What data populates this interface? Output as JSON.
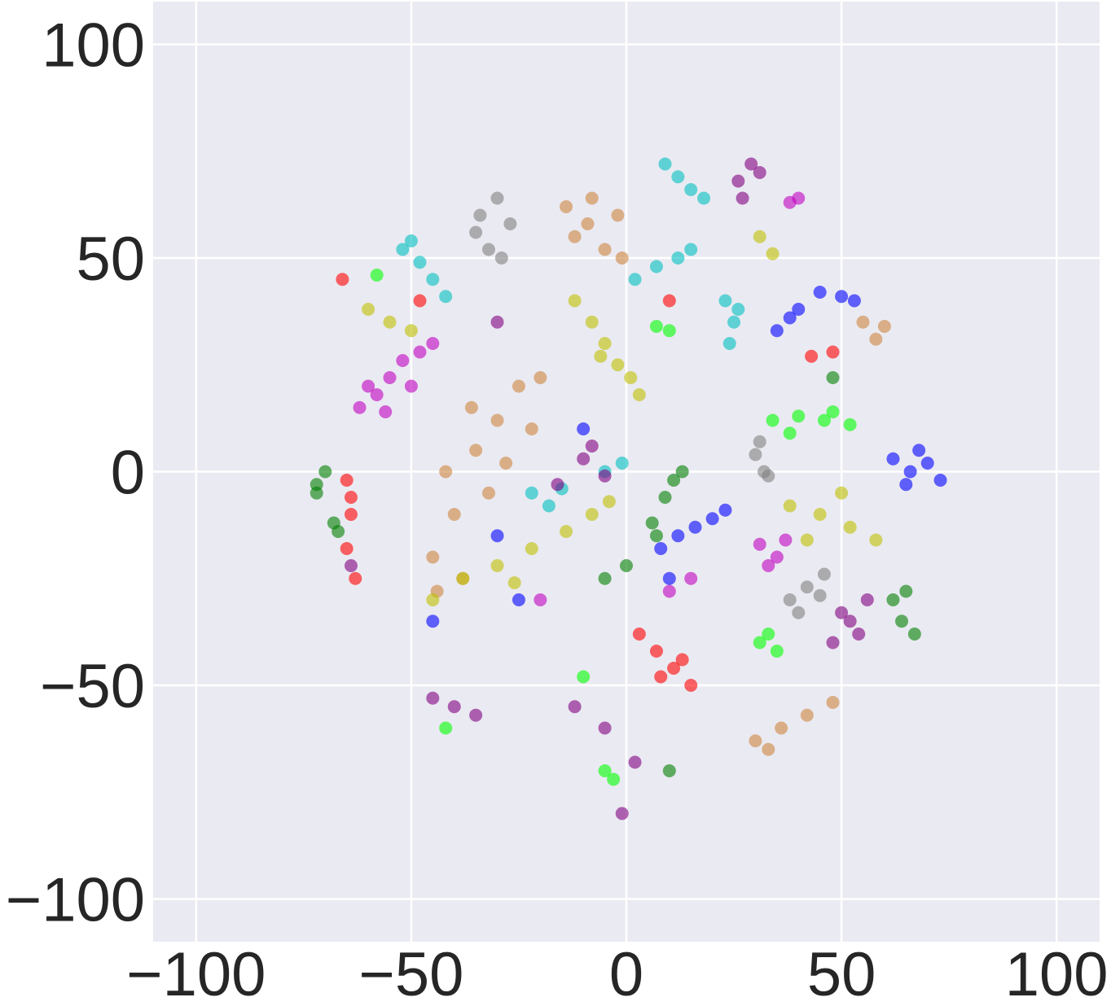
{
  "chart_data": {
    "type": "scatter",
    "xlim": [
      -110,
      110
    ],
    "ylim": [
      -110,
      110
    ],
    "xticks": [
      {
        "value": -100,
        "label": "−100"
      },
      {
        "value": -50,
        "label": "−50"
      },
      0,
      50,
      100
    ],
    "yticks": [
      {
        "value": -100,
        "label": "−100"
      },
      {
        "value": -50,
        "label": "−50"
      },
      0,
      50,
      100
    ],
    "grid": true,
    "series": [
      {
        "color": "#cd853f",
        "x": [
          -14,
          -8,
          -2,
          -12,
          -5,
          -9,
          -1,
          -45,
          -40,
          -42,
          -35,
          -30,
          -25,
          -20,
          -38,
          -32,
          -28,
          -22,
          -44,
          -36,
          30,
          36,
          42,
          48,
          33,
          55,
          58,
          60
        ],
        "y": [
          62,
          64,
          60,
          55,
          52,
          58,
          50,
          -20,
          -10,
          0,
          5,
          12,
          20,
          22,
          -25,
          -5,
          2,
          10,
          -28,
          15,
          -63,
          -60,
          -57,
          -54,
          -65,
          35,
          31,
          34
        ]
      },
      {
        "color": "#808080",
        "x": [
          -34,
          -30,
          -27,
          -32,
          -29,
          -35,
          30,
          32,
          31,
          33,
          38,
          42,
          46,
          40,
          45
        ],
        "y": [
          60,
          64,
          58,
          52,
          50,
          56,
          4,
          0,
          7,
          -1,
          -30,
          -27,
          -24,
          -33,
          -29
        ]
      },
      {
        "color": "#00bfbf",
        "x": [
          9,
          12,
          15,
          18,
          -52,
          -48,
          -45,
          -42,
          -50,
          23,
          25,
          24,
          26,
          2,
          7,
          12,
          15,
          -22,
          -18,
          -15,
          -5,
          -1
        ],
        "y": [
          72,
          69,
          66,
          64,
          52,
          49,
          45,
          41,
          54,
          40,
          35,
          30,
          38,
          45,
          48,
          50,
          52,
          -5,
          -8,
          -4,
          0,
          2
        ]
      },
      {
        "color": "#bf00bf",
        "x": [
          -62,
          -58,
          -55,
          -52,
          -48,
          -60,
          -56,
          -50,
          -45,
          31,
          35,
          33,
          37,
          38,
          40,
          -20,
          10,
          15
        ],
        "y": [
          15,
          18,
          22,
          26,
          28,
          20,
          14,
          20,
          30,
          -17,
          -20,
          -22,
          -16,
          63,
          64,
          -30,
          -28,
          -25
        ]
      },
      {
        "color": "#bfbf00",
        "x": [
          -12,
          -8,
          -5,
          -2,
          1,
          3,
          -6,
          -60,
          -55,
          -50,
          38,
          45,
          52,
          58,
          42,
          50,
          31,
          34,
          -45,
          -38,
          -30,
          -22,
          -14,
          -8,
          -4,
          -26
        ],
        "y": [
          40,
          35,
          30,
          25,
          22,
          18,
          27,
          38,
          35,
          33,
          -8,
          -10,
          -13,
          -16,
          -16,
          -5,
          55,
          51,
          -30,
          -25,
          -22,
          -18,
          -14,
          -10,
          -7,
          -26
        ]
      },
      {
        "color": "#0000ff",
        "x": [
          62,
          66,
          70,
          73,
          65,
          68,
          8,
          12,
          16,
          20,
          23,
          35,
          40,
          45,
          50,
          53,
          38,
          -25,
          -30,
          -10,
          -45,
          10
        ],
        "y": [
          3,
          0,
          2,
          -2,
          -3,
          5,
          -18,
          -15,
          -13,
          -11,
          -9,
          33,
          38,
          42,
          41,
          40,
          36,
          -30,
          -15,
          10,
          -35,
          -25
        ]
      },
      {
        "color": "#ff0000",
        "x": [
          3,
          7,
          11,
          15,
          13,
          8,
          -65,
          -64,
          -65,
          -63,
          -64,
          43,
          48,
          -66,
          10,
          -48
        ],
        "y": [
          -38,
          -42,
          -46,
          -50,
          -44,
          -48,
          -2,
          -10,
          -18,
          -25,
          -6,
          27,
          28,
          45,
          40,
          40
        ]
      },
      {
        "color": "#00ff00",
        "x": [
          34,
          40,
          46,
          52,
          38,
          48,
          31,
          35,
          33,
          -5,
          -3,
          7,
          10,
          -58,
          -42,
          -10
        ],
        "y": [
          12,
          13,
          12,
          11,
          9,
          14,
          -40,
          -42,
          -38,
          -70,
          -72,
          34,
          33,
          46,
          -60,
          -48
        ]
      },
      {
        "color": "#007f00",
        "x": [
          6,
          9,
          11,
          13,
          7,
          62,
          64,
          67,
          65,
          -72,
          -70,
          -72,
          -67,
          -68,
          48,
          -5,
          0,
          10
        ],
        "y": [
          -12,
          -6,
          -2,
          0,
          -15,
          -30,
          -35,
          -38,
          -28,
          -3,
          0,
          -5,
          -14,
          -12,
          22,
          -25,
          -22,
          -70
        ]
      },
      {
        "color": "#800080",
        "x": [
          48,
          52,
          56,
          50,
          54,
          26,
          29,
          31,
          27,
          -45,
          -40,
          -35,
          -16,
          -10,
          -5,
          -8,
          -12,
          -5,
          2,
          -1,
          -64,
          -30
        ],
        "y": [
          -40,
          -35,
          -30,
          -33,
          -38,
          68,
          72,
          70,
          64,
          -53,
          -55,
          -57,
          -3,
          3,
          -1,
          6,
          -55,
          -60,
          -68,
          -80,
          -22,
          35
        ]
      }
    ]
  }
}
